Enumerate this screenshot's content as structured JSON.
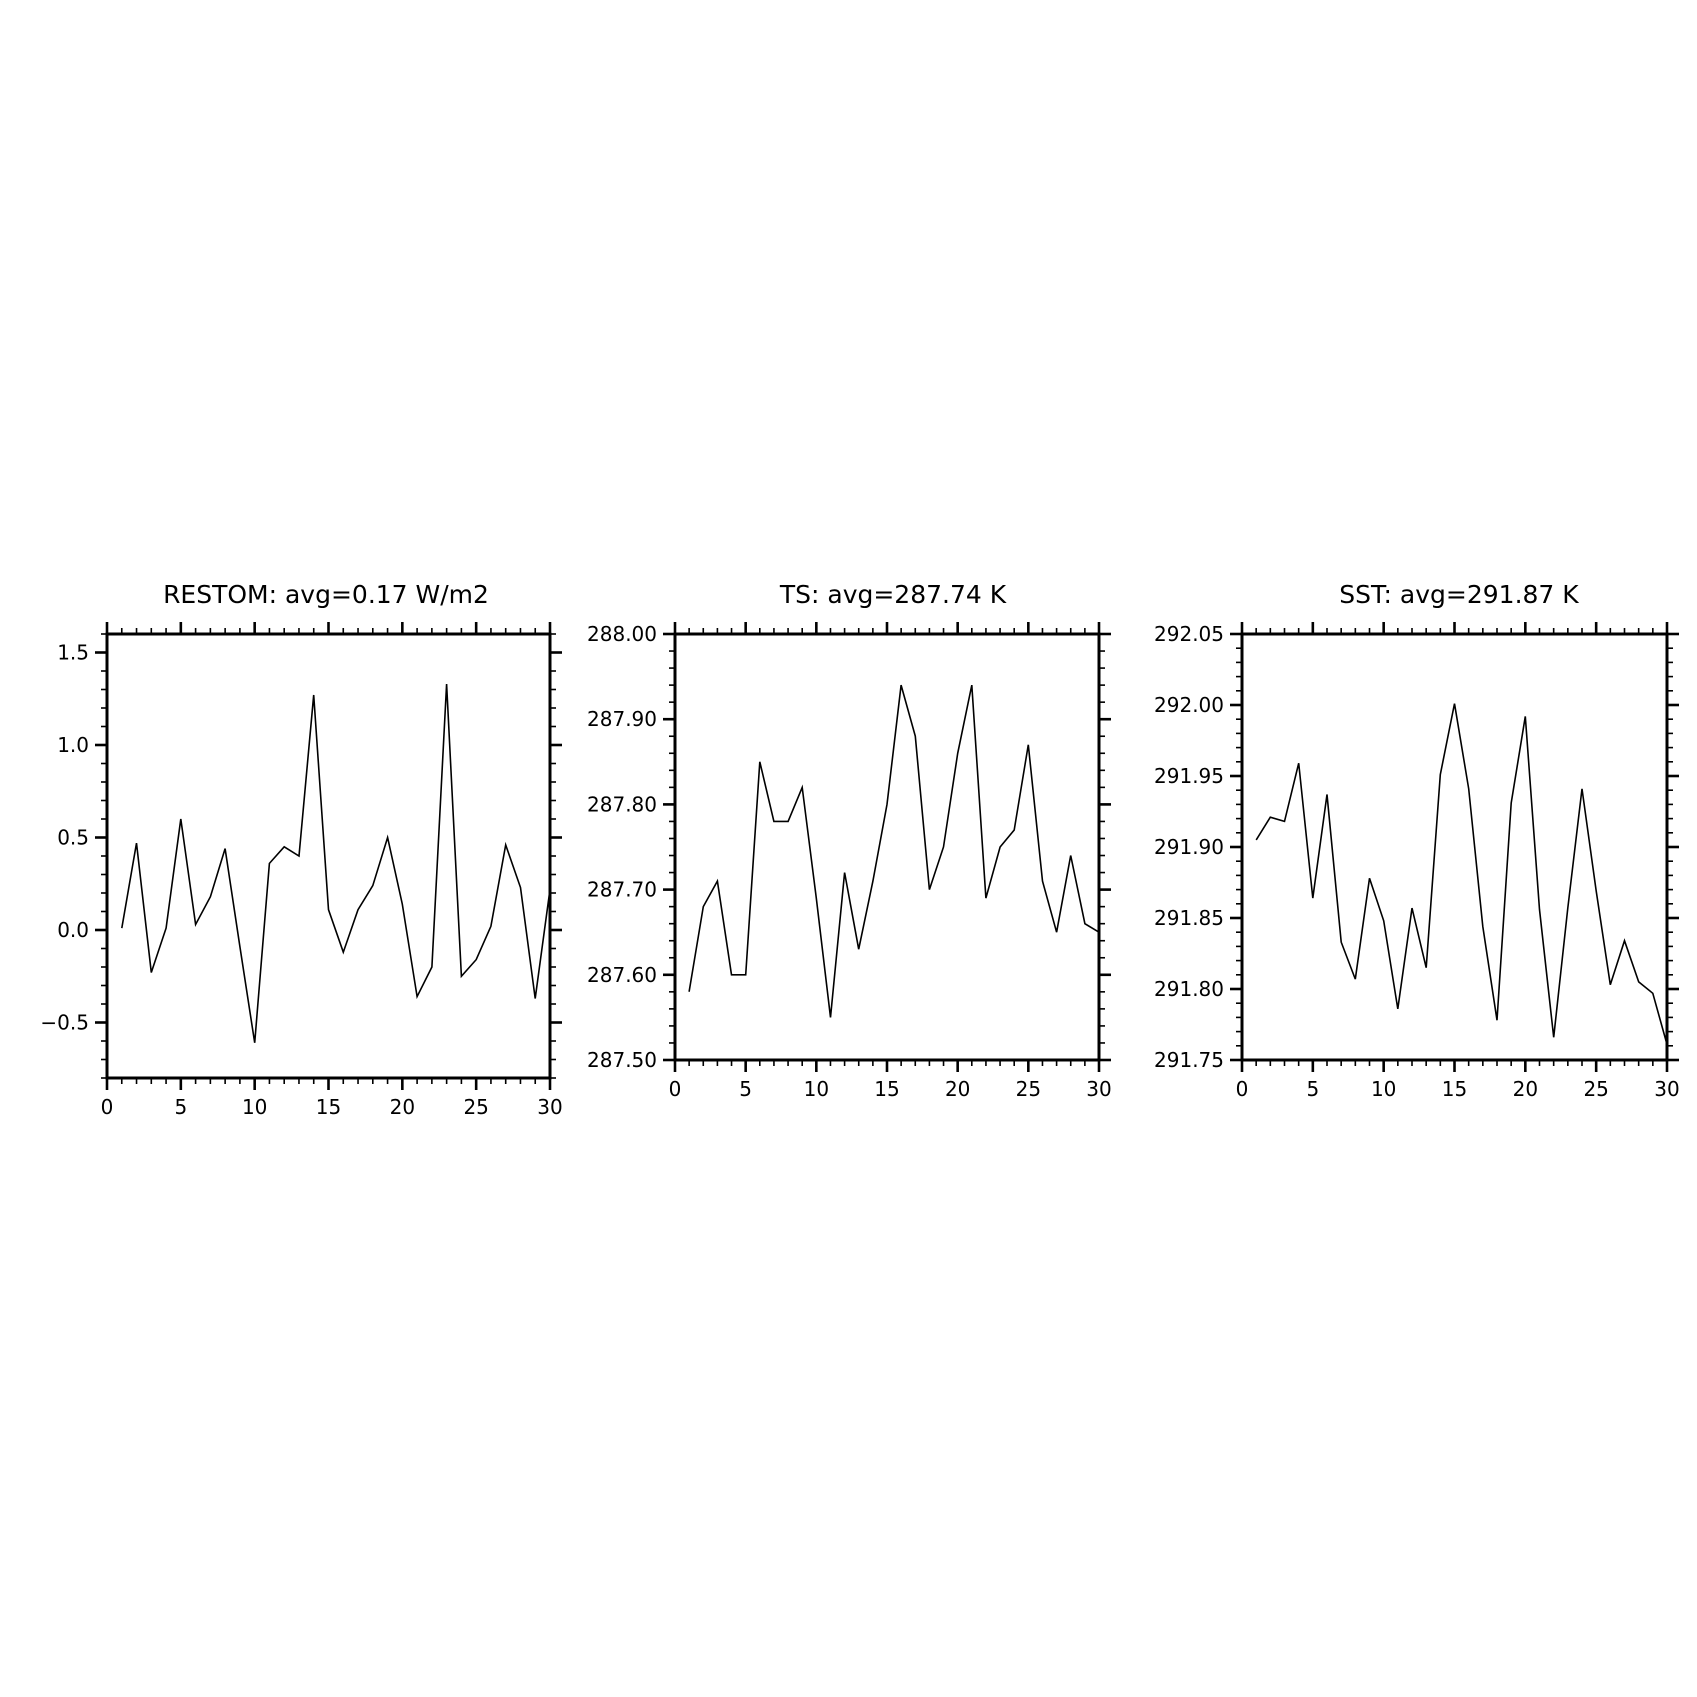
{
  "chart_data": [
    {
      "type": "line",
      "title": "RESTOM: avg=0.17 W/m2",
      "xlabel": "",
      "ylabel": "",
      "xlim": [
        0,
        30
      ],
      "ylim": [
        -0.8,
        1.6
      ],
      "x_ticks": [
        0,
        5,
        10,
        15,
        20,
        25,
        30
      ],
      "x_tick_labels": [
        "0",
        "5",
        "10",
        "15",
        "20",
        "25",
        "30"
      ],
      "x_minor_step": 1,
      "y_ticks": [
        -0.5,
        0.0,
        0.5,
        1.0,
        1.5
      ],
      "y_tick_labels": [
        "−0.5",
        "0.0",
        "0.5",
        "1.0",
        "1.5"
      ],
      "y_minor_step": 0.1,
      "grid": false,
      "x": [
        1,
        2,
        3,
        4,
        5,
        6,
        7,
        8,
        9,
        10,
        11,
        12,
        13,
        14,
        15,
        16,
        17,
        18,
        19,
        20,
        21,
        22,
        23,
        24,
        25,
        26,
        27,
        28,
        29,
        30
      ],
      "series": [
        {
          "values": [
            0.01,
            0.47,
            -0.23,
            0.01,
            0.6,
            0.03,
            0.18,
            0.44,
            -0.09,
            -0.61,
            0.36,
            0.45,
            0.4,
            1.27,
            0.11,
            -0.12,
            0.11,
            0.24,
            0.5,
            0.14,
            -0.36,
            -0.2,
            1.33,
            -0.25,
            -0.16,
            0.02,
            0.46,
            0.23,
            -0.37,
            0.22
          ]
        }
      ]
    },
    {
      "type": "line",
      "title": "TS: avg=287.74 K",
      "xlabel": "",
      "ylabel": "",
      "xlim": [
        0,
        30
      ],
      "ylim": [
        287.5,
        288.0
      ],
      "x_ticks": [
        0,
        5,
        10,
        15,
        20,
        25,
        30
      ],
      "x_tick_labels": [
        "0",
        "5",
        "10",
        "15",
        "20",
        "25",
        "30"
      ],
      "x_minor_step": 1,
      "y_ticks": [
        287.5,
        287.6,
        287.7,
        287.8,
        287.9,
        288.0
      ],
      "y_tick_labels": [
        "287.50",
        "287.60",
        "287.70",
        "287.80",
        "287.90",
        "288.00"
      ],
      "y_minor_step": 0.02,
      "grid": false,
      "x": [
        1,
        2,
        3,
        4,
        5,
        6,
        7,
        8,
        9,
        10,
        11,
        12,
        13,
        14,
        15,
        16,
        17,
        18,
        19,
        20,
        21,
        22,
        23,
        24,
        25,
        26,
        27,
        28,
        29,
        30
      ],
      "series": [
        {
          "values": [
            287.58,
            287.68,
            287.71,
            287.6,
            287.6,
            287.85,
            287.78,
            287.78,
            287.82,
            287.69,
            287.55,
            287.72,
            287.63,
            287.71,
            287.8,
            287.94,
            287.88,
            287.7,
            287.75,
            287.86,
            287.94,
            287.69,
            287.75,
            287.77,
            287.87,
            287.71,
            287.65,
            287.74,
            287.66,
            287.65
          ]
        }
      ]
    },
    {
      "type": "line",
      "title": "SST: avg=291.87 K",
      "xlabel": "",
      "ylabel": "",
      "xlim": [
        0,
        30
      ],
      "ylim": [
        291.75,
        292.05
      ],
      "x_ticks": [
        0,
        5,
        10,
        15,
        20,
        25,
        30
      ],
      "x_tick_labels": [
        "0",
        "5",
        "10",
        "15",
        "20",
        "25",
        "30"
      ],
      "x_minor_step": 1,
      "y_ticks": [
        291.75,
        291.8,
        291.85,
        291.9,
        291.95,
        292.0,
        292.05
      ],
      "y_tick_labels": [
        "291.75",
        "291.80",
        "291.85",
        "291.90",
        "291.95",
        "292.00",
        "292.05"
      ],
      "y_minor_step": 0.01,
      "grid": false,
      "x": [
        1,
        2,
        3,
        4,
        5,
        6,
        7,
        8,
        9,
        10,
        11,
        12,
        13,
        14,
        15,
        16,
        17,
        18,
        19,
        20,
        21,
        22,
        23,
        24,
        25,
        26,
        27,
        28,
        29,
        30
      ],
      "series": [
        {
          "values": [
            291.905,
            291.921,
            291.918,
            291.959,
            291.864,
            291.937,
            291.833,
            291.807,
            291.878,
            291.848,
            291.786,
            291.857,
            291.815,
            291.951,
            292.001,
            291.941,
            291.844,
            291.778,
            291.931,
            291.992,
            291.856,
            291.766,
            291.857,
            291.941,
            291.869,
            291.803,
            291.834,
            291.805,
            291.797,
            291.761
          ]
        }
      ]
    }
  ]
}
